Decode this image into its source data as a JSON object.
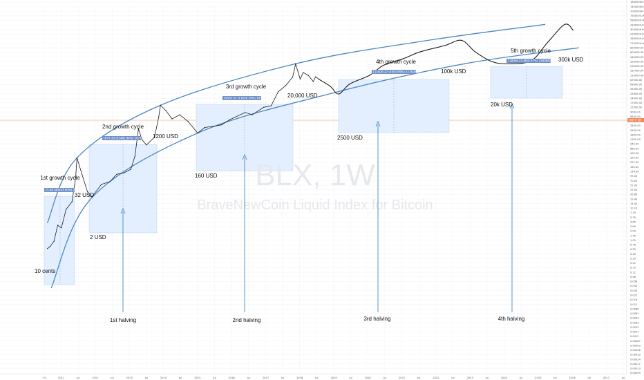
{
  "chart_data": {
    "type": "line",
    "title": "",
    "xlabel": "",
    "ylabel": "",
    "watermark": {
      "symbol": "BLX, 1W",
      "name": "BraveNewCoin Liquid Index for Bitcoin"
    },
    "x_tick_labels": [
      "'10",
      "2011",
      "Jul",
      "2012",
      "Jul",
      "2013",
      "Jul",
      "2014",
      "Jul",
      "2015",
      "Jul",
      "2016",
      "Jul",
      "2017",
      "Jul",
      "2018",
      "Jul",
      "2019",
      "Jul",
      "2020",
      "Jul",
      "2021",
      "Jul",
      "2022",
      "Jul",
      "2023",
      "Jul",
      "2024",
      "Jul",
      "2025",
      "Jul",
      "2026",
      "Jul",
      "2027",
      "Jul"
    ],
    "y_tick_labels": [
      "16000000.00",
      "14500000.00",
      "10000000.00",
      "7500000.00",
      "5800000.00",
      "4100000.00",
      "3000000.00",
      "2200000.00",
      "1600000.00",
      "1150000.00",
      "825000.00",
      "600000.00",
      "440000.00",
      "320000.00",
      "230000.00",
      "167000.00",
      "120000.00",
      "87000.00",
      "63000.00",
      "45000.00",
      "33000.00",
      "24000.00",
      "17000.00",
      "12500.00",
      "9000.00",
      "6500.00",
      "4750.00",
      "3450.00",
      "2500.00",
      "1800.00",
      "1300.00",
      "940.00",
      "680.00",
      "490.00",
      "355.00",
      "257.00",
      "185.00",
      "134.00",
      "97.00",
      "70.00",
      "51.00",
      "37.00",
      "26.80",
      "19.40",
      "14.00",
      "10.10",
      "7.35",
      "5.30",
      "3.85",
      "2.80",
      "2.00",
      "1.45",
      "1.05",
      "0.76",
      "0.55",
      "0.40",
      "0.29",
      "0.21",
      "0.15",
      "0.11",
      "0.08",
      "0.058",
      "0.042",
      "0.030",
      "0.022",
      "0.016",
      "0.012",
      "0.0085",
      "0.0061",
      "0.0044",
      "0.0032",
      "0.0023",
      "0.0017",
      "0.0012",
      "0.00087",
      "0.00063",
      "0.00046",
      "0.00033",
      "0.00024",
      "0.00017",
      "0.00013",
      "0.00009"
    ],
    "current_price_label": "6877.18",
    "historical_price": {
      "name": "BLX",
      "x": [
        "2010-07-20",
        "2010-08-20",
        "2010-10-01",
        "2010-11-10",
        "2010-12-20",
        "2011-02-10",
        "2011-04-15",
        "2011-05-25",
        "2011-06-08",
        "2011-08-01",
        "2011-10-01",
        "2011-11-18",
        "2012-03-01",
        "2012-06-01",
        "2012-08-15",
        "2012-11-01",
        "2013-01-15",
        "2013-03-01",
        "2013-04-09",
        "2013-05-15",
        "2013-07-05",
        "2013-10-01",
        "2013-11-15",
        "2013-12-04",
        "2014-02-01",
        "2014-04-10",
        "2014-07-01",
        "2014-10-01",
        "2015-01-14",
        "2015-04-01",
        "2015-07-01",
        "2015-10-01",
        "2016-01-01",
        "2016-06-15",
        "2016-09-01",
        "2017-01-03",
        "2017-03-25",
        "2017-06-10",
        "2017-09-01",
        "2017-11-15",
        "2017-12-17",
        "2018-02-05",
        "2018-03-10",
        "2018-05-05",
        "2018-06-28",
        "2018-07-24",
        "2018-09-01"
      ],
      "y": [
        0.06,
        0.07,
        0.1,
        0.3,
        0.25,
        0.9,
        1.5,
        8,
        31,
        10,
        3,
        2.1,
        5,
        6,
        10,
        11,
        14,
        35,
        230,
        110,
        75,
        130,
        500,
        1150,
        800,
        450,
        600,
        380,
        170,
        250,
        270,
        300,
        430,
        700,
        600,
        1000,
        1100,
        2900,
        4500,
        8000,
        19700,
        7000,
        11000,
        9000,
        5900,
        8200,
        6800
      ]
    },
    "projected_path": {
      "name": "projection",
      "x": [
        "2018-09-01",
        "2019-01-01",
        "2019-04-01",
        "2019-08-01",
        "2020-03-01",
        "2020-08-01",
        "2021-03-01",
        "2021-09-01",
        "2022-06-01",
        "2022-12-01",
        "2023-05-01",
        "2023-11-01",
        "2024-05-01",
        "2025-01-01",
        "2025-07-01",
        "2026-01-01",
        "2026-04-01"
      ],
      "y": [
        6800,
        4200,
        2500,
        5000,
        9000,
        18000,
        28000,
        45000,
        70000,
        100000,
        45000,
        23000,
        20000,
        25000,
        90000,
        300000,
        200000
      ]
    },
    "trend_channel": {
      "upper": {
        "x": [
          "2010-07-20",
          "2011-06-08",
          "2013-12-04",
          "2017-12-17",
          "2021-12-01",
          "2025-06-01"
        ],
        "y": [
          0.35,
          31,
          1150,
          20000,
          100000,
          300000
        ]
      },
      "lower": {
        "x": [
          "2010-09-01",
          "2011-11-18",
          "2015-01-14",
          "2018-12-15",
          "2023-01-01",
          "2026-06-01"
        ],
        "y": [
          0.004,
          2,
          170,
          2500,
          20000,
          60000
        ]
      }
    },
    "annotations": {
      "cycles": [
        "1st growth cycle",
        "2nd growth cycle",
        "3rd growth cycle",
        "4th growth cycle",
        "5th growth cycle"
      ],
      "range_tags": [
        "25.48 (49543.60%) 2540",
        "1077.20 (53462.84%) 107720",
        "19501.51 (11636.59%) 1950151",
        "111626.22 (4503.69%) 11162622",
        "218066.23 (850.37%) 21806623"
      ],
      "halvings": [
        "1st halving",
        "2nd halving",
        "3rd halving",
        "4th halving"
      ],
      "price_labels": [
        "10 cents",
        "32 USD",
        "2 USD",
        "1200 USD",
        "160 USD",
        "20,000 USD",
        "2500 USD",
        "100k USD",
        "20k USD",
        "300k USD"
      ]
    }
  },
  "colors": {
    "background": "#ffffff",
    "price_line": "#1a1a1a",
    "channel": "#4a86c5",
    "box_fill": "#e3efff",
    "tag_bg": "#6c8fc7",
    "current_price": "#f08a5d",
    "watermark": "#e6e8ec"
  }
}
